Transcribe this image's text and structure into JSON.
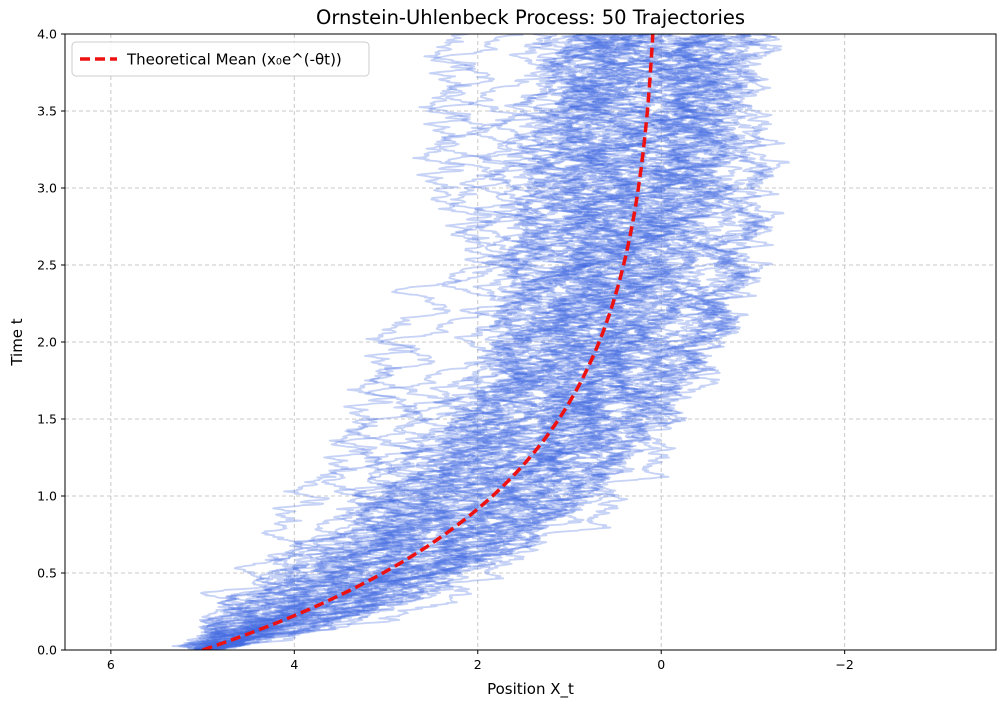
{
  "chart_data": {
    "type": "line",
    "title": "Ornstein-Uhlenbeck Process: 50 Trajectories",
    "xlabel": "Position X_t",
    "ylabel": "Time t",
    "xlim": [
      6.5,
      -3.65
    ],
    "ylim": [
      0.0,
      4.0
    ],
    "x_inverted": true,
    "x_ticks": [
      6,
      4,
      2,
      0,
      -2
    ],
    "x_tick_labels": [
      "6",
      "4",
      "2",
      "0",
      "−2"
    ],
    "y_ticks": [
      0.0,
      0.5,
      1.0,
      1.5,
      2.0,
      2.5,
      3.0,
      3.5,
      4.0
    ],
    "y_tick_labels": [
      "0.0",
      "0.5",
      "1.0",
      "1.5",
      "2.0",
      "2.5",
      "3.0",
      "3.5",
      "4.0"
    ],
    "grid": true,
    "legend_position": "top-left",
    "simulation": {
      "n_trajectories": 50,
      "x0": 5.0,
      "theta": 1.0,
      "sigma": 1.0,
      "t_end": 4.0,
      "color": "#4169e1",
      "alpha": 0.3
    },
    "series": [
      {
        "name": "Theoretical Mean (x₀e^(-θt))",
        "style": "dashed",
        "color": "#ee1111",
        "t": [
          0.0,
          0.25,
          0.5,
          0.75,
          1.0,
          1.25,
          1.5,
          1.75,
          2.0,
          2.25,
          2.5,
          2.75,
          3.0,
          3.25,
          3.5,
          3.75,
          4.0
        ],
        "x": [
          5.0,
          3.89,
          3.03,
          2.36,
          1.84,
          1.43,
          1.12,
          0.87,
          0.68,
          0.53,
          0.41,
          0.32,
          0.25,
          0.19,
          0.15,
          0.12,
          0.09
        ]
      }
    ]
  }
}
